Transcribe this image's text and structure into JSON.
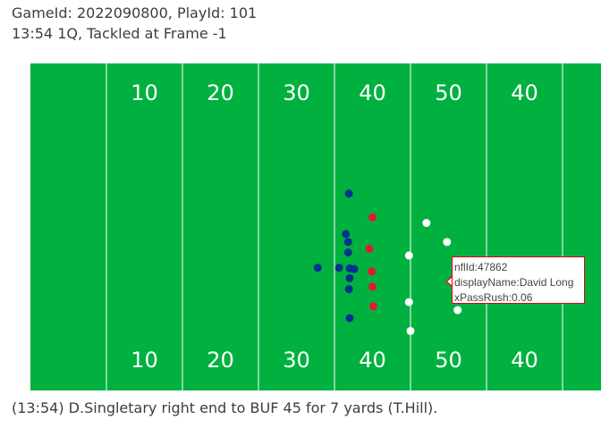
{
  "header": {
    "line1": "GameId: 2022090800, PlayId: 101",
    "line2": "13:54 1Q, Tackled at Frame -1"
  },
  "play_description": "(13:54) D.Singletary right end to BUF 45 for 7 yards (T.Hill).",
  "colors": {
    "field": "#00b140",
    "lines": "#ffffff",
    "team_blue": "#00338d",
    "team_red": "#e31837",
    "team_white": "#ffffff"
  },
  "chart_data": {
    "type": "scatter",
    "x_range": [
      0,
      120
    ],
    "y_range": [
      0,
      53.3
    ],
    "yard_lines": [
      15,
      25,
      35,
      45,
      55,
      65,
      75,
      85,
      95,
      105
    ],
    "yard_numbers_top": [
      {
        "x": 20,
        "label": "10"
      },
      {
        "x": 30,
        "label": "20"
      },
      {
        "x": 40,
        "label": "30"
      },
      {
        "x": 50,
        "label": "40"
      },
      {
        "x": 60,
        "label": "50"
      },
      {
        "x": 70,
        "label": "40"
      }
    ],
    "yard_numbers_bottom": [
      {
        "x": 20,
        "label": "10"
      },
      {
        "x": 30,
        "label": "20"
      },
      {
        "x": 40,
        "label": "30"
      },
      {
        "x": 50,
        "label": "40"
      },
      {
        "x": 60,
        "label": "50"
      },
      {
        "x": 70,
        "label": "40"
      }
    ],
    "series": [
      {
        "team": "blue",
        "points": [
          {
            "x": 46.9,
            "y": 32.1
          },
          {
            "x": 46.5,
            "y": 25.5
          },
          {
            "x": 46.8,
            "y": 24.2
          },
          {
            "x": 46.8,
            "y": 22.5
          },
          {
            "x": 47.0,
            "y": 19.9
          },
          {
            "x": 47.6,
            "y": 19.8
          },
          {
            "x": 42.8,
            "y": 20.0
          },
          {
            "x": 45.6,
            "y": 20.0
          },
          {
            "x": 47.0,
            "y": 18.3
          },
          {
            "x": 46.9,
            "y": 16.5
          },
          {
            "x": 47.0,
            "y": 11.8
          }
        ]
      },
      {
        "team": "red",
        "points": [
          {
            "x": 50.0,
            "y": 28.2
          },
          {
            "x": 49.6,
            "y": 23.1
          },
          {
            "x": 49.9,
            "y": 19.4
          },
          {
            "x": 50.0,
            "y": 16.9
          },
          {
            "x": 50.1,
            "y": 13.7
          }
        ]
      },
      {
        "team": "white",
        "points": [
          {
            "x": 57.1,
            "y": 27.3
          },
          {
            "x": 59.8,
            "y": 24.2
          },
          {
            "x": 54.8,
            "y": 22.0
          },
          {
            "x": 54.8,
            "y": 14.4
          },
          {
            "x": 61.2,
            "y": 13.1
          },
          {
            "x": 55.0,
            "y": 9.7
          }
        ]
      }
    ],
    "tooltip": {
      "line1": "nflId:47862",
      "line2": "displayName:David Long",
      "line3": "xPassRush:0.06"
    }
  }
}
